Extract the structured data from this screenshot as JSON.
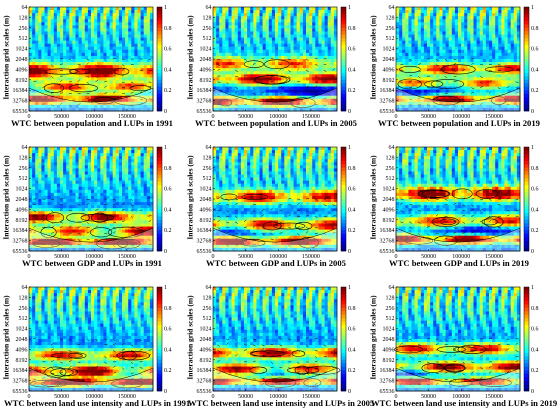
{
  "common": {
    "ylabel": "Interaction grid scales (m)",
    "yticks": [
      "64",
      "128",
      "256",
      "512",
      "1024",
      "2048",
      "4096",
      "8192",
      "16384",
      "32768",
      "65536"
    ],
    "xticks": [
      "0",
      "50000",
      "100000",
      "150000"
    ],
    "colorbar_ticks": [
      "1",
      "0.8",
      "0.6",
      "0.4",
      "0.2",
      "0"
    ],
    "colormap": [
      "#00008f",
      "#0000ff",
      "#0080ff",
      "#00ffff",
      "#80ff80",
      "#ffff00",
      "#ff8000",
      "#ff0000",
      "#800000"
    ]
  },
  "chart_data": [
    {
      "type": "heatmap",
      "title": "WTC between population and LUPs in 1991",
      "ylabel": "Interaction grid scales (m)",
      "colorbar_range": [
        0,
        1
      ]
    },
    {
      "type": "heatmap",
      "title": "WTC between population and LUPs in 2005",
      "ylabel": "Interaction grid scales (m)",
      "colorbar_range": [
        0,
        1
      ]
    },
    {
      "type": "heatmap",
      "title": "WTC between population and LUPs in 2019",
      "ylabel": "Interaction grid scales (m)",
      "colorbar_range": [
        0,
        1
      ]
    },
    {
      "type": "heatmap",
      "title": "WTC between GDP and LUPs in 1991",
      "ylabel": "Interaction grid scales (m)",
      "colorbar_range": [
        0,
        1
      ]
    },
    {
      "type": "heatmap",
      "title": "WTC between GDP and LUPs in 2005",
      "ylabel": "Interaction grid scales (m)",
      "colorbar_range": [
        0,
        1
      ]
    },
    {
      "type": "heatmap",
      "title": "WTC between GDP and LUPs in 2019",
      "ylabel": "Interaction grid scales (m)",
      "colorbar_range": [
        0,
        1
      ]
    },
    {
      "type": "heatmap",
      "title": "WTC between land use intensity and LUPs in 1991",
      "ylabel": "Interaction grid scales (m)",
      "colorbar_range": [
        0,
        1
      ]
    },
    {
      "type": "heatmap",
      "title": "WTC between land use intensity and LUPs in 2005",
      "ylabel": "Interaction grid scales (m)",
      "colorbar_range": [
        0,
        1
      ]
    },
    {
      "type": "heatmap",
      "title": "WTC between land use intensity and LUPs in 2019",
      "ylabel": "Interaction grid scales (m)",
      "colorbar_range": [
        0,
        1
      ]
    }
  ]
}
